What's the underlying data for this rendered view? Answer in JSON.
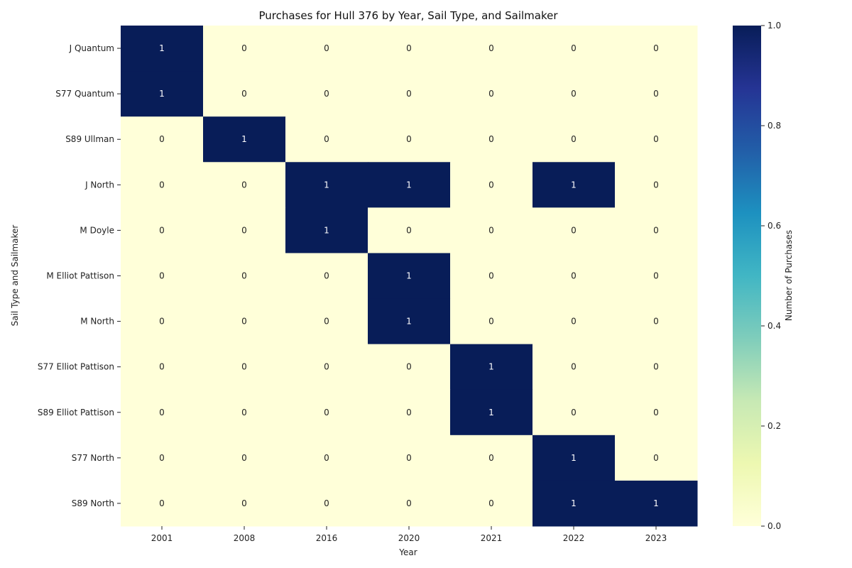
{
  "chart_data": {
    "type": "heatmap",
    "title": "Purchases for Hull 376 by Year, Sail Type, and Sailmaker",
    "xlabel": "Year",
    "ylabel": "Sail Type and Sailmaker",
    "x": [
      "2001",
      "2008",
      "2016",
      "2020",
      "2021",
      "2022",
      "2023"
    ],
    "y": [
      "J Quantum",
      "S77 Quantum",
      "S89 Ullman",
      "J North",
      "M Doyle",
      "M Elliot Pattison",
      "M North",
      "S77 Elliot Pattison",
      "S89 Elliot Pattison",
      "S77 North",
      "S89 North"
    ],
    "values": [
      [
        1,
        0,
        0,
        0,
        0,
        0,
        0
      ],
      [
        1,
        0,
        0,
        0,
        0,
        0,
        0
      ],
      [
        0,
        1,
        0,
        0,
        0,
        0,
        0
      ],
      [
        0,
        0,
        1,
        1,
        0,
        1,
        0
      ],
      [
        0,
        0,
        1,
        0,
        0,
        0,
        0
      ],
      [
        0,
        0,
        0,
        1,
        0,
        0,
        0
      ],
      [
        0,
        0,
        0,
        1,
        0,
        0,
        0
      ],
      [
        0,
        0,
        0,
        0,
        1,
        0,
        0
      ],
      [
        0,
        0,
        0,
        0,
        1,
        0,
        0
      ],
      [
        0,
        0,
        0,
        0,
        0,
        1,
        0
      ],
      [
        0,
        0,
        0,
        0,
        0,
        1,
        1
      ]
    ],
    "colorbar": {
      "label": "Number of Purchases",
      "range": [
        0.0,
        1.0
      ],
      "ticks": [
        "0.0",
        "0.2",
        "0.4",
        "0.6",
        "0.8",
        "1.0"
      ],
      "colormap": [
        "#ffffd9",
        "#edf8b1",
        "#c7e9b4",
        "#7fcdbb",
        "#41b6c4",
        "#1d91c0",
        "#225ea8",
        "#253494",
        "#081d58"
      ]
    },
    "annotation_colors": {
      "low": "#222222",
      "high": "#ffffff"
    }
  }
}
